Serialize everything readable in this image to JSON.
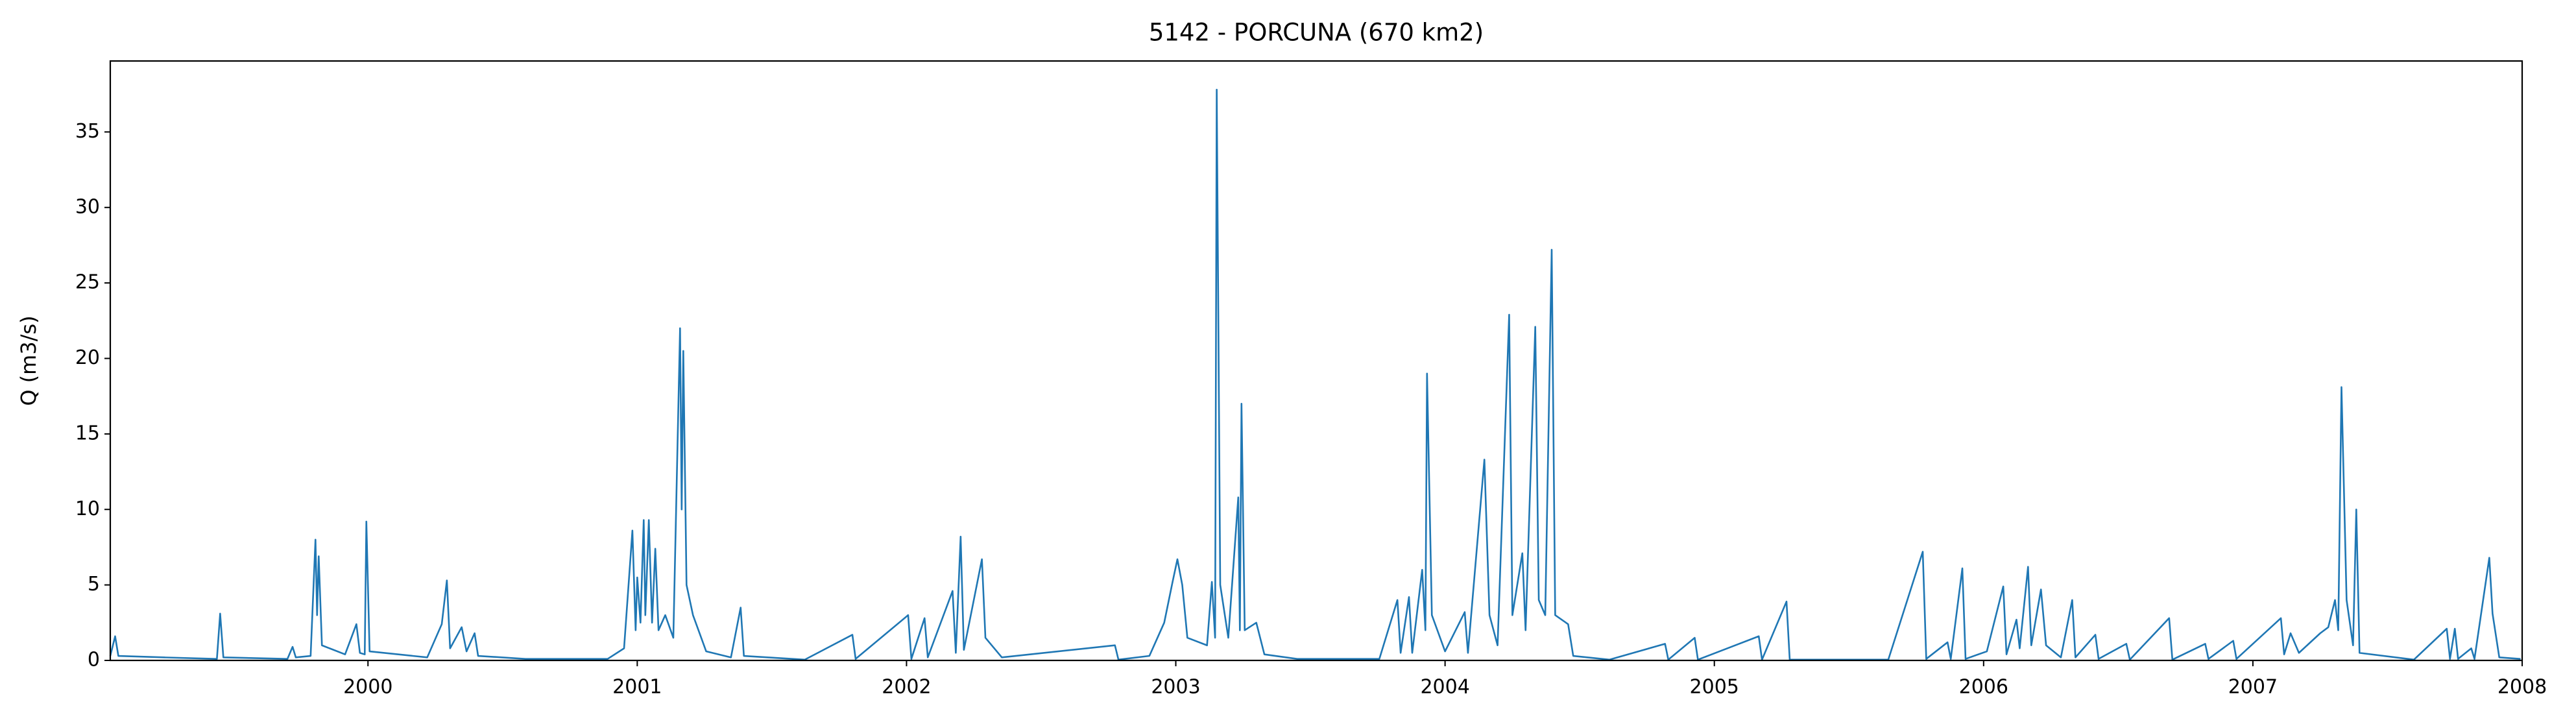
{
  "chart_data": {
    "type": "line",
    "title": "5142 - PORCUNA (670 km2)",
    "y_label": "Q (m3/s)",
    "x": [
      1999.043,
      1999.061,
      1999.073,
      1999.244,
      1999.439,
      1999.451,
      1999.463,
      1999.701,
      1999.72,
      1999.732,
      1999.787,
      1999.805,
      1999.811,
      1999.817,
      1999.829,
      1999.915,
      1999.957,
      1999.97,
      1999.988,
      1999.994,
      2000.006,
      2000.22,
      2000.274,
      2000.293,
      2000.305,
      2000.348,
      2000.366,
      2000.396,
      2000.409,
      2000.585,
      2000.89,
      2000.951,
      2000.982,
      2000.994,
      2001.0,
      2001.012,
      2001.024,
      2001.03,
      2001.043,
      2001.055,
      2001.067,
      2001.079,
      2001.104,
      2001.134,
      2001.159,
      2001.165,
      2001.171,
      2001.183,
      2001.207,
      2001.256,
      2001.348,
      2001.384,
      2001.396,
      2001.622,
      2001.799,
      2001.811,
      2002.006,
      2002.018,
      2002.067,
      2002.079,
      2002.171,
      2002.183,
      2002.201,
      2002.213,
      2002.28,
      2002.293,
      2002.354,
      2002.774,
      2002.787,
      2002.902,
      2002.957,
      2002.988,
      2003.006,
      2003.024,
      2003.043,
      2003.116,
      2003.134,
      2003.146,
      2003.152,
      2003.165,
      2003.195,
      2003.232,
      2003.238,
      2003.244,
      2003.256,
      2003.299,
      2003.329,
      2003.451,
      2003.756,
      2003.823,
      2003.835,
      2003.866,
      2003.878,
      2003.915,
      2003.927,
      2003.933,
      2003.951,
      2004.0,
      2004.073,
      2004.085,
      2004.146,
      2004.165,
      2004.195,
      2004.238,
      2004.25,
      2004.287,
      2004.299,
      2004.335,
      2004.348,
      2004.372,
      2004.396,
      2004.409,
      2004.457,
      2004.476,
      2004.61,
      2004.817,
      2004.829,
      2004.927,
      2004.939,
      2005.165,
      2005.177,
      2005.268,
      2005.28,
      2005.646,
      2005.774,
      2005.787,
      2005.866,
      2005.878,
      2005.921,
      2005.933,
      2006.012,
      2006.073,
      2006.085,
      2006.122,
      2006.134,
      2006.165,
      2006.177,
      2006.213,
      2006.232,
      2006.287,
      2006.329,
      2006.341,
      2006.415,
      2006.427,
      2006.53,
      2006.543,
      2006.689,
      2006.701,
      2006.823,
      2006.835,
      2006.927,
      2006.939,
      2007.104,
      2007.116,
      2007.14,
      2007.171,
      2007.25,
      2007.28,
      2007.305,
      2007.317,
      2007.329,
      2007.348,
      2007.372,
      2007.384,
      2007.396,
      2007.598,
      2007.72,
      2007.732,
      2007.75,
      2007.762,
      2007.811,
      2007.823,
      2007.878,
      2007.89,
      2007.915,
      2007.994
    ],
    "series": [
      {
        "color": "#1f77b4",
        "values": [
          0.3,
          1.6,
          0.3,
          0.2,
          0.1,
          3.1,
          0.2,
          0.1,
          0.9,
          0.2,
          0.3,
          8,
          3,
          6.9,
          1,
          0.4,
          2.4,
          0.5,
          0.4,
          9.2,
          0.6,
          0.2,
          2.4,
          5.3,
          0.8,
          2.2,
          0.6,
          1.8,
          0.3,
          0.1,
          0.1,
          0.8,
          8.6,
          2,
          5.5,
          2.5,
          9.3,
          3,
          9.3,
          2.5,
          7.4,
          2,
          3,
          1.5,
          22,
          10,
          20.5,
          5,
          3,
          0.6,
          0.2,
          3.5,
          0.3,
          0.05,
          1.7,
          0.1,
          3,
          0.1,
          2.8,
          0.2,
          4.6,
          0.5,
          8.2,
          0.7,
          6.7,
          1.5,
          0.2,
          1,
          0.05,
          0.3,
          2.5,
          5.2,
          6.7,
          5,
          1.5,
          1,
          5.2,
          1.5,
          37.8,
          5,
          1.5,
          10.8,
          2,
          17,
          2,
          2.5,
          0.4,
          0.1,
          0.1,
          4,
          0.5,
          4.2,
          0.5,
          6,
          2,
          19,
          3,
          0.6,
          3.2,
          0.5,
          13.3,
          3,
          1,
          22.9,
          3,
          7.1,
          2,
          22.1,
          4,
          3,
          27.2,
          3,
          2.4,
          0.3,
          0.05,
          1.1,
          0.05,
          1.5,
          0.05,
          1.6,
          0.05,
          3.9,
          0.05,
          0.05,
          7.2,
          0.1,
          1.2,
          0.1,
          6.1,
          0.1,
          0.6,
          4.9,
          0.4,
          2.7,
          0.8,
          6.2,
          1,
          4.7,
          1,
          0.2,
          4,
          0.2,
          1.7,
          0.1,
          1.1,
          0.05,
          2.8,
          0.05,
          1.1,
          0.1,
          1.3,
          0.1,
          2.8,
          0.4,
          1.8,
          0.5,
          1.8,
          2.2,
          4,
          2,
          18.1,
          4,
          1,
          10,
          0.5,
          0.05,
          2.1,
          0.1,
          2.1,
          0.1,
          0.8,
          0.1,
          6.8,
          3.1,
          0.2,
          0.1
        ]
      }
    ],
    "xlim": [
      1999.043,
      2008
    ],
    "xticks": [
      2000,
      2001,
      2002,
      2003,
      2004,
      2005,
      2006,
      2007,
      2008
    ],
    "ylim": [
      0,
      39.7
    ],
    "yticks": [
      0,
      5,
      10,
      15,
      20,
      25,
      30,
      35
    ],
    "grid": false
  }
}
